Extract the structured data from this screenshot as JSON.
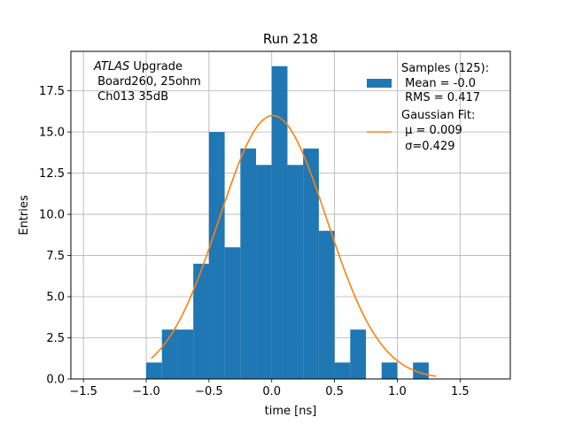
{
  "chart_data": {
    "type": "bar",
    "title": "Run 218",
    "xlabel": "time [ns]",
    "ylabel": "Entries",
    "xlim": [
      -1.6,
      1.9
    ],
    "ylim": [
      0,
      19.9
    ],
    "grid": true,
    "xticks": [
      -1.5,
      -1.0,
      -0.5,
      0.0,
      0.5,
      1.0,
      1.5
    ],
    "xtick_labels": [
      "−1.5",
      "−1.0",
      "−0.5",
      "0.0",
      "0.5",
      "1.0",
      "1.5"
    ],
    "yticks": [
      0,
      2.5,
      5,
      7.5,
      10,
      12.5,
      15,
      17.5
    ],
    "ytick_labels": [
      "0.0",
      "2.5",
      "5.0",
      "7.5",
      "10.0",
      "12.5",
      "15.0",
      "17.5"
    ],
    "histogram": {
      "name": "Samples (125):",
      "color": "#1f77b4",
      "bin_edges": [
        -1.0,
        -0.875,
        -0.75,
        -0.625,
        -0.5,
        -0.375,
        -0.25,
        -0.125,
        0.0,
        0.125,
        0.25,
        0.375,
        0.5,
        0.625,
        0.75,
        0.875,
        1.0,
        1.125,
        1.25,
        1.375
      ],
      "counts": [
        1,
        3,
        3,
        7,
        15,
        8,
        14,
        13,
        19,
        13,
        14,
        9,
        1,
        3,
        0,
        1,
        0,
        1,
        0
      ]
    },
    "fit": {
      "name": "Gaussian Fit:",
      "color": "#ff7f0e",
      "mu": 0.009,
      "sigma": 0.429,
      "amplitude": 16.0,
      "x_range": [
        -0.96,
        1.31
      ]
    },
    "legend": {
      "position": "top-right",
      "entries": [
        {
          "lines": [
            "Samples (125):",
            " Mean = -0.0",
            " RMS = 0.417"
          ]
        },
        {
          "lines": [
            "Gaussian Fit:",
            " μ = 0.009",
            " σ=0.429"
          ]
        }
      ]
    },
    "annotation": {
      "position": "top-left",
      "italic_prefix": "ATLAS",
      "first_line_rest": " Upgrade",
      "lines": [
        " Board260, 25ohm",
        " Ch013 35dB"
      ]
    }
  }
}
